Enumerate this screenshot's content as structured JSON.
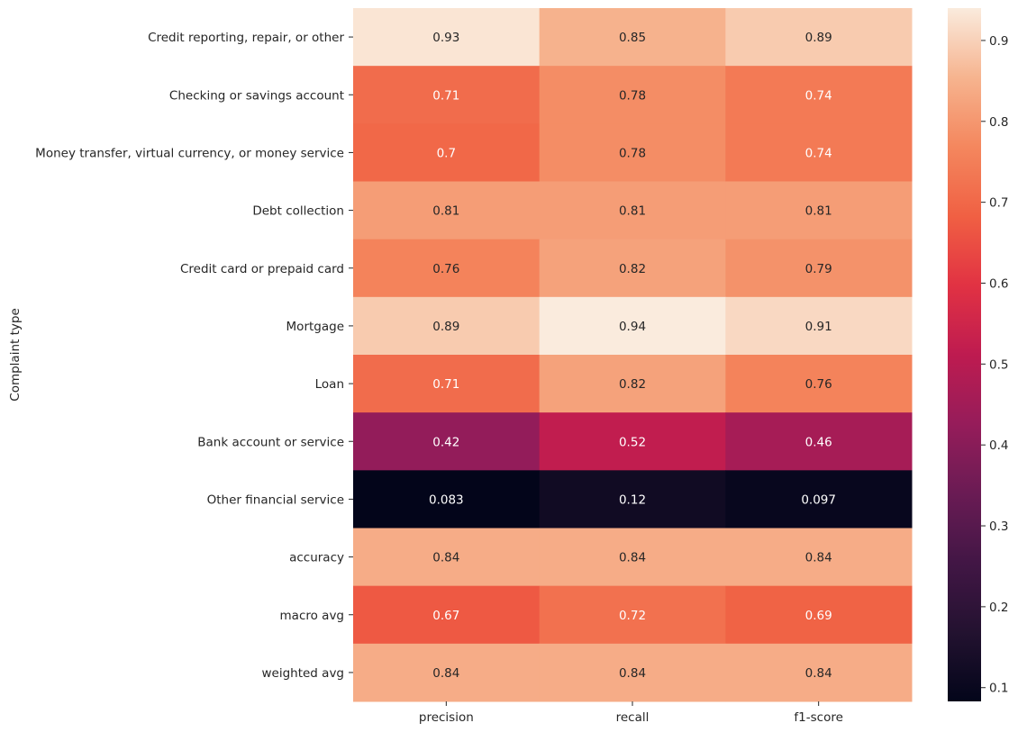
{
  "chart_data": {
    "type": "heatmap",
    "title": "",
    "xlabel": "",
    "ylabel": "Complaint type",
    "colormap": "rocket",
    "columns": [
      "precision",
      "recall",
      "f1-score"
    ],
    "rows": [
      "Credit reporting, repair, or other",
      "Checking or savings account",
      "Money transfer, virtual currency, or money service",
      "Debt collection",
      "Credit card or prepaid card",
      "Mortgage",
      "Loan",
      "Bank account or service",
      "Other financial service",
      "accuracy",
      "macro avg",
      "weighted avg"
    ],
    "values": [
      [
        0.93,
        0.85,
        0.89
      ],
      [
        0.71,
        0.78,
        0.74
      ],
      [
        0.7,
        0.78,
        0.74
      ],
      [
        0.81,
        0.81,
        0.81
      ],
      [
        0.76,
        0.82,
        0.79
      ],
      [
        0.89,
        0.94,
        0.91
      ],
      [
        0.71,
        0.82,
        0.76
      ],
      [
        0.42,
        0.52,
        0.46
      ],
      [
        0.083,
        0.12,
        0.097
      ],
      [
        0.84,
        0.84,
        0.84
      ],
      [
        0.67,
        0.72,
        0.69
      ],
      [
        0.84,
        0.84,
        0.84
      ]
    ],
    "annotations": [
      [
        "0.93",
        "0.85",
        "0.89"
      ],
      [
        "0.71",
        "0.78",
        "0.74"
      ],
      [
        "0.7",
        "0.78",
        "0.74"
      ],
      [
        "0.81",
        "0.81",
        "0.81"
      ],
      [
        "0.76",
        "0.82",
        "0.79"
      ],
      [
        "0.89",
        "0.94",
        "0.91"
      ],
      [
        "0.71",
        "0.82",
        "0.76"
      ],
      [
        "0.42",
        "0.52",
        "0.46"
      ],
      [
        "0.083",
        "0.12",
        "0.097"
      ],
      [
        "0.84",
        "0.84",
        "0.84"
      ],
      [
        "0.67",
        "0.72",
        "0.69"
      ],
      [
        "0.84",
        "0.84",
        "0.84"
      ]
    ],
    "colorbar": {
      "vmin": 0.083,
      "vmax": 0.94,
      "ticks": [
        0.1,
        0.2,
        0.3,
        0.4,
        0.5,
        0.6,
        0.7,
        0.8,
        0.9
      ],
      "tick_labels": [
        "0.1",
        "0.2",
        "0.3",
        "0.4",
        "0.5",
        "0.6",
        "0.7",
        "0.8",
        "0.9"
      ]
    }
  }
}
